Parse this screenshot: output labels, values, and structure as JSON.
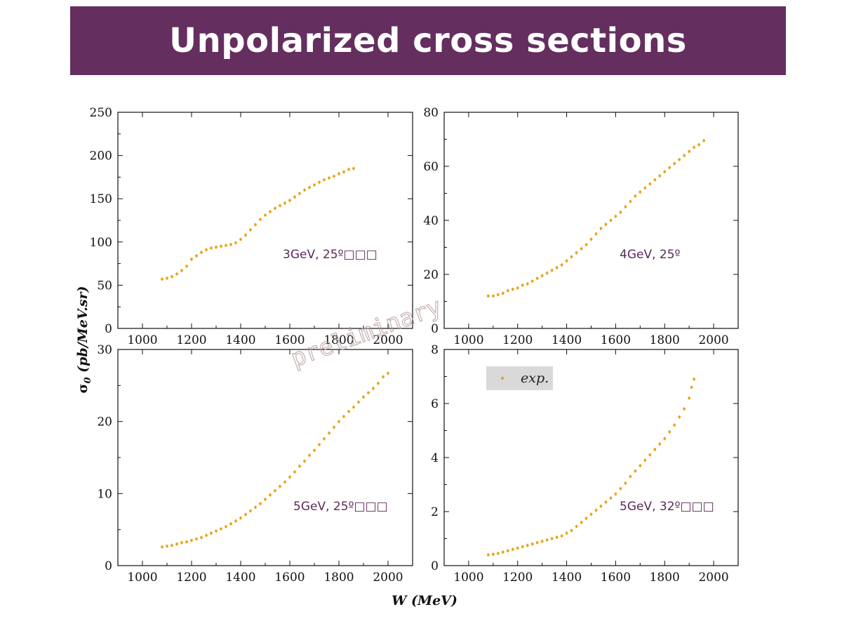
{
  "slide": {
    "title": "Unpolarized cross sections"
  },
  "figure": {
    "x_axis_title": "W (MeV)",
    "y_axis_title": "σ0 (pb/MeV.sr)",
    "y_axis_title_main": "σ",
    "y_axis_title_sub": "0",
    "y_axis_title_rest": " (pb/MeV.sr)",
    "watermark": "preliminary",
    "legend": {
      "label": "exp.",
      "color": "#e8a317",
      "background": "#d9d9d9"
    },
    "marker_color": "#e8a317"
  },
  "chart_data": [
    {
      "type": "scatter",
      "label": "3GeV, 25º□□□",
      "xlim": [
        900,
        2100
      ],
      "ylim": [
        0,
        250
      ],
      "xticks": [
        1000,
        1200,
        1400,
        1600,
        1800,
        2000
      ],
      "yticks": [
        0,
        50,
        100,
        150,
        200,
        250
      ],
      "x": [
        1080,
        1100,
        1120,
        1140,
        1160,
        1180,
        1200,
        1220,
        1240,
        1260,
        1280,
        1300,
        1320,
        1340,
        1360,
        1380,
        1400,
        1420,
        1440,
        1460,
        1480,
        1500,
        1520,
        1540,
        1560,
        1580,
        1600,
        1620,
        1640,
        1660,
        1680,
        1700,
        1720,
        1740,
        1760,
        1780,
        1800,
        1820,
        1840,
        1860
      ],
      "y": [
        57,
        58,
        60,
        63,
        67,
        72,
        80,
        84,
        88,
        91,
        93,
        94,
        95,
        96,
        97,
        99,
        103,
        108,
        114,
        120,
        126,
        131,
        135,
        139,
        142,
        145,
        148,
        152,
        156,
        160,
        163,
        166,
        169,
        172,
        174,
        176,
        179,
        181,
        184,
        185
      ]
    },
    {
      "type": "scatter",
      "label": "4GeV, 25º",
      "xlim": [
        900,
        2100
      ],
      "ylim": [
        0,
        80
      ],
      "xticks": [
        1000,
        1200,
        1400,
        1600,
        1800,
        2000
      ],
      "yticks": [
        0,
        20,
        40,
        60,
        80
      ],
      "x": [
        1080,
        1100,
        1120,
        1140,
        1160,
        1180,
        1200,
        1220,
        1240,
        1260,
        1280,
        1300,
        1320,
        1340,
        1360,
        1380,
        1400,
        1420,
        1440,
        1460,
        1480,
        1500,
        1520,
        1540,
        1560,
        1580,
        1600,
        1620,
        1640,
        1660,
        1680,
        1700,
        1720,
        1740,
        1760,
        1780,
        1800,
        1820,
        1840,
        1860,
        1880,
        1900,
        1920,
        1940,
        1960
      ],
      "y": [
        12,
        12,
        12.5,
        13,
        14,
        14.5,
        15,
        16,
        16.5,
        17.5,
        18.5,
        19.5,
        20.5,
        21.5,
        22.5,
        23.5,
        25,
        26.5,
        28,
        29.5,
        31,
        33,
        35,
        37,
        38.5,
        40,
        41.5,
        43,
        45,
        47,
        49,
        50.5,
        52,
        53.5,
        55,
        56.5,
        58,
        59.5,
        61,
        62.5,
        64,
        65.5,
        67,
        68,
        69.5
      ]
    },
    {
      "type": "scatter",
      "label": "5GeV, 25º□□□",
      "xlim": [
        900,
        2100
      ],
      "ylim": [
        0,
        30
      ],
      "xticks": [
        1000,
        1200,
        1400,
        1600,
        1800,
        2000
      ],
      "yticks": [
        0,
        10,
        20,
        30
      ],
      "x": [
        1080,
        1100,
        1120,
        1140,
        1160,
        1180,
        1200,
        1220,
        1240,
        1260,
        1280,
        1300,
        1320,
        1340,
        1360,
        1380,
        1400,
        1420,
        1440,
        1460,
        1480,
        1500,
        1520,
        1540,
        1560,
        1580,
        1600,
        1620,
        1640,
        1660,
        1680,
        1700,
        1720,
        1740,
        1760,
        1780,
        1800,
        1820,
        1840,
        1860,
        1880,
        1900,
        1920,
        1940,
        1960,
        1980,
        2000
      ],
      "y": [
        2.6,
        2.7,
        2.8,
        3.0,
        3.2,
        3.3,
        3.5,
        3.7,
        3.9,
        4.2,
        4.5,
        4.8,
        5.1,
        5.4,
        5.8,
        6.2,
        6.6,
        7.1,
        7.6,
        8.1,
        8.6,
        9.2,
        9.8,
        10.4,
        11.0,
        11.6,
        12.3,
        13.0,
        13.8,
        14.5,
        15.3,
        16.0,
        16.8,
        17.6,
        18.4,
        19.2,
        20.0,
        20.7,
        21.4,
        22.0,
        22.7,
        23.4,
        24.0,
        24.6,
        25.3,
        26.2,
        26.7
      ]
    },
    {
      "type": "scatter",
      "label": "5GeV, 32º□□□",
      "xlim": [
        900,
        2100
      ],
      "ylim": [
        0,
        8
      ],
      "xticks": [
        1000,
        1200,
        1400,
        1600,
        1800,
        2000
      ],
      "yticks": [
        0,
        2,
        4,
        6,
        8
      ],
      "legend_shown": true,
      "x": [
        1080,
        1100,
        1120,
        1140,
        1160,
        1180,
        1200,
        1220,
        1240,
        1260,
        1280,
        1300,
        1320,
        1340,
        1360,
        1380,
        1400,
        1420,
        1440,
        1460,
        1480,
        1500,
        1520,
        1540,
        1560,
        1580,
        1600,
        1620,
        1640,
        1660,
        1680,
        1700,
        1720,
        1740,
        1760,
        1780,
        1800,
        1820,
        1840,
        1860,
        1880,
        1900,
        1910,
        1920
      ],
      "y": [
        0.4,
        0.42,
        0.45,
        0.5,
        0.55,
        0.6,
        0.65,
        0.7,
        0.75,
        0.8,
        0.85,
        0.9,
        0.95,
        1.0,
        1.05,
        1.1,
        1.2,
        1.3,
        1.45,
        1.6,
        1.75,
        1.9,
        2.05,
        2.2,
        2.35,
        2.5,
        2.65,
        2.85,
        3.05,
        3.3,
        3.5,
        3.7,
        3.9,
        4.1,
        4.3,
        4.5,
        4.7,
        4.95,
        5.2,
        5.5,
        5.8,
        6.2,
        6.6,
        6.9
      ]
    }
  ]
}
